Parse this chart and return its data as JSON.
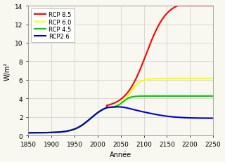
{
  "xlabel": "Année",
  "ylabel": "W/m²",
  "xlim": [
    1850,
    2250
  ],
  "ylim": [
    0,
    14
  ],
  "xticks": [
    1850,
    1900,
    1950,
    2000,
    2050,
    2100,
    2150,
    2200,
    2250
  ],
  "yticks": [
    0,
    2,
    4,
    6,
    8,
    10,
    12,
    14
  ],
  "legend_labels": [
    "RCP 8.5",
    "RCP 6.0",
    "RCP 4.5",
    "RCP2.6"
  ],
  "colors": [
    "#ff0000",
    "#ffff00",
    "#00cc00",
    "#0000cc"
  ],
  "background_color": "#f8f8f0",
  "grid_color": "#cccccc",
  "font_size": 7,
  "linewidth": 1.5
}
